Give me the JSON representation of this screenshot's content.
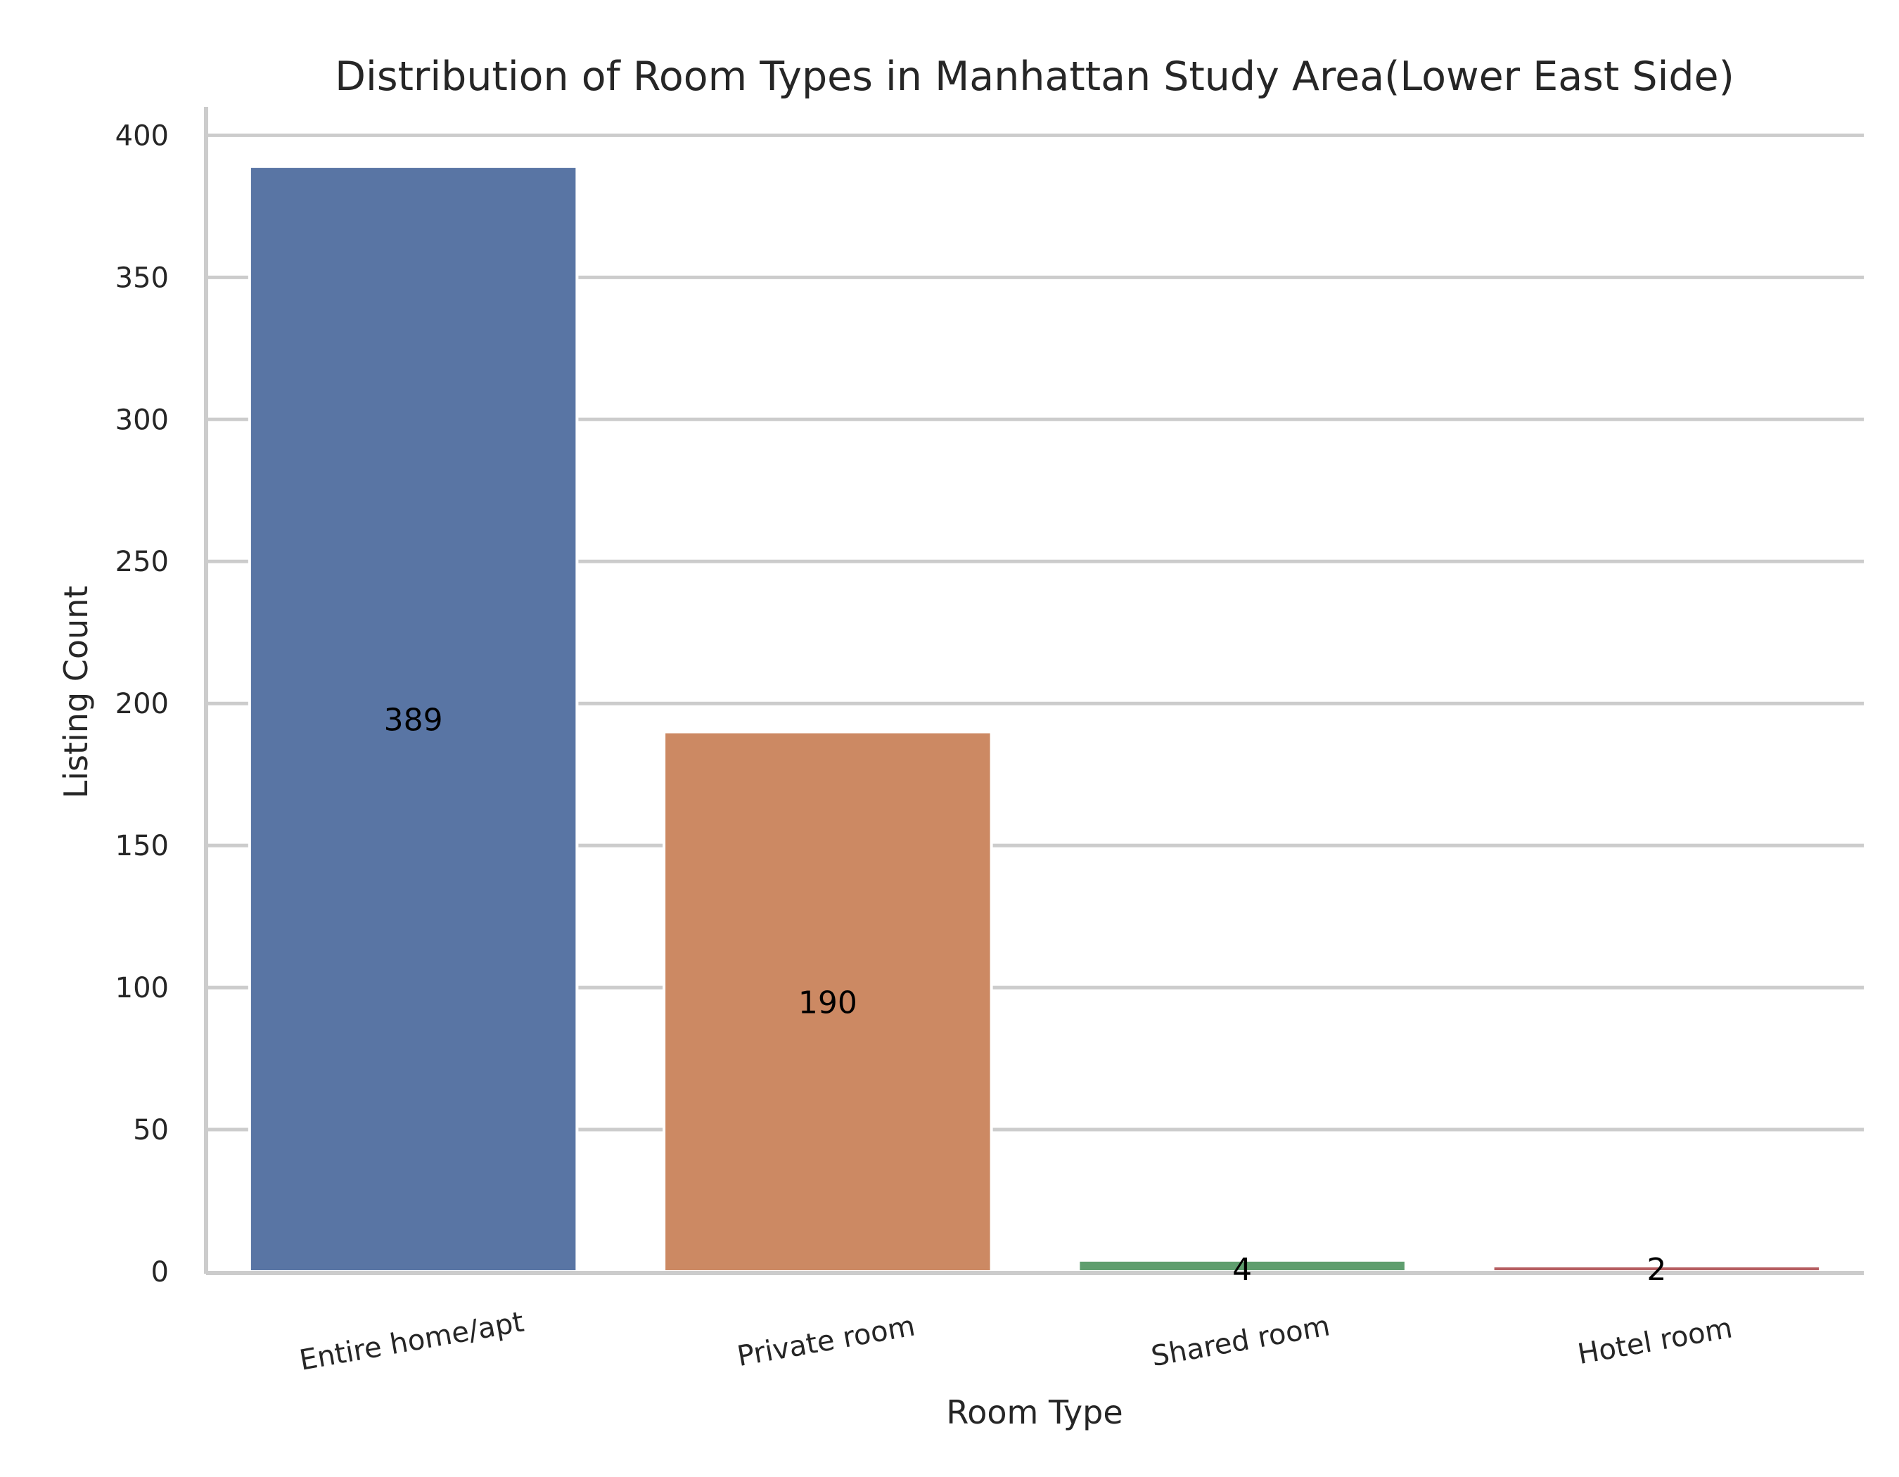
{
  "chart_data": {
    "type": "bar",
    "title": "Distribution of Room Types in Manhattan Study Area(Lower East Side)",
    "xlabel": "Room Type",
    "ylabel": "Listing Count",
    "categories": [
      "Entire home/apt",
      "Private room",
      "Shared room",
      "Hotel room"
    ],
    "values": [
      389,
      190,
      4,
      2
    ],
    "value_labels": [
      "389",
      "190",
      "4",
      "2"
    ],
    "colors": [
      "#5975a4",
      "#cc8963",
      "#5f9e6e",
      "#b55d60"
    ],
    "ylim": [
      0,
      410
    ],
    "yticks": [
      0,
      50,
      100,
      150,
      200,
      250,
      300,
      350,
      400
    ],
    "grid": true,
    "xtick_rotation": 10
  }
}
